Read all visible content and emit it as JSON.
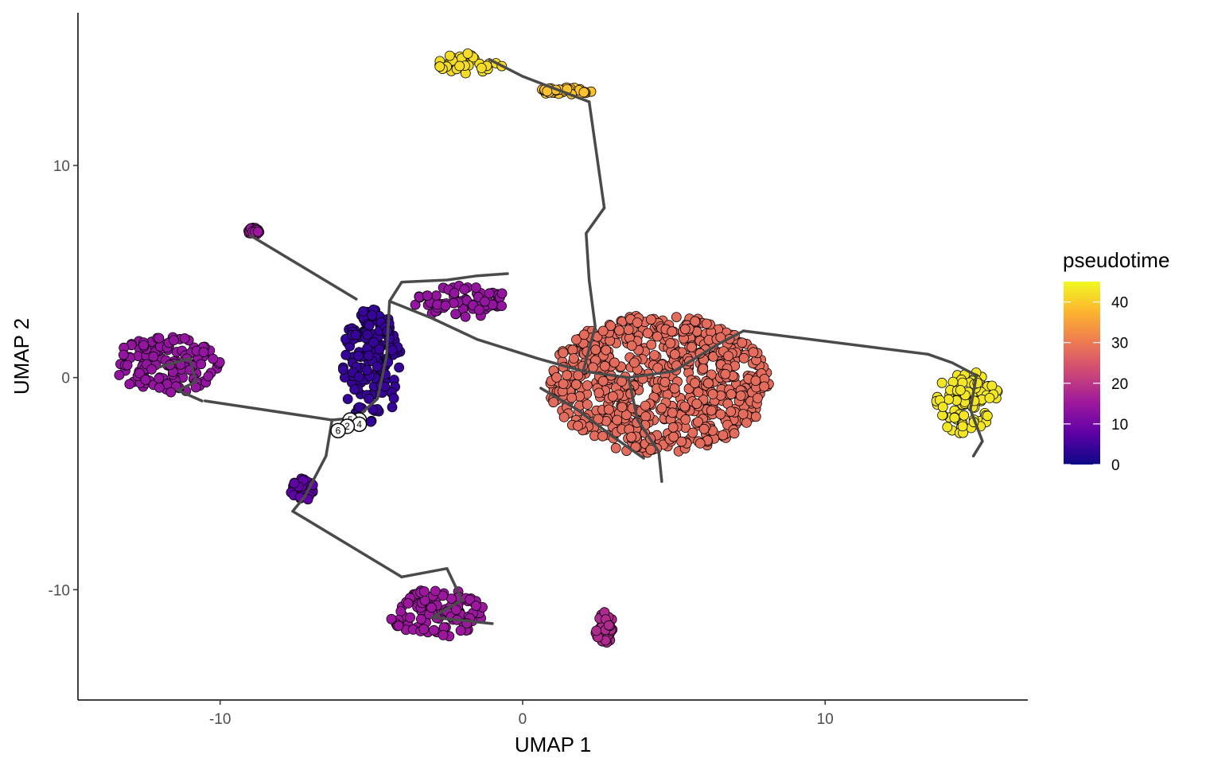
{
  "chart_data": {
    "type": "scatter",
    "title": "",
    "xlabel": "UMAP 1",
    "ylabel": "UMAP 2",
    "xlim": [
      -14.7,
      16.7
    ],
    "ylim": [
      -15.2,
      17.2
    ],
    "x_ticks": [
      {
        "value": -10,
        "label": "-10"
      },
      {
        "value": 0,
        "label": "0"
      },
      {
        "value": 10,
        "label": "10"
      }
    ],
    "y_ticks": [
      {
        "value": -10,
        "label": "-10"
      },
      {
        "value": 0,
        "label": "0"
      },
      {
        "value": 10,
        "label": "10"
      }
    ],
    "grid": false,
    "colorbar": {
      "title": "pseudotime",
      "range": [
        0,
        45
      ],
      "ticks": [
        {
          "value": 0,
          "label": "0"
        },
        {
          "value": 10,
          "label": "10"
        },
        {
          "value": 20,
          "label": "20"
        },
        {
          "value": 30,
          "label": "30"
        },
        {
          "value": 40,
          "label": "40"
        }
      ],
      "colormap": "plasma",
      "stops": [
        "#0d0887",
        "#5c01a6",
        "#9c179e",
        "#cc4778",
        "#ed7953",
        "#fdb42f",
        "#f0f921"
      ]
    },
    "clusters": [
      {
        "name": "upper-left-blob",
        "center": [
          -11.8,
          0.6
        ],
        "size": [
          3.6,
          2.7
        ],
        "pseudotime": 14
      },
      {
        "name": "main-stem",
        "center": [
          -5.0,
          0.5
        ],
        "size": [
          2.0,
          5.5
        ],
        "pseudotime": 4
      },
      {
        "name": "stem-tail",
        "center": [
          -7.3,
          -5.3
        ],
        "size": [
          0.8,
          1.1
        ],
        "pseudotime": 8
      },
      {
        "name": "bridge",
        "center": [
          -2.0,
          3.6
        ],
        "size": [
          3.2,
          1.5
        ],
        "pseudotime": 14
      },
      {
        "name": "small-outlier",
        "center": [
          -8.9,
          6.9
        ],
        "size": [
          0.4,
          0.35
        ],
        "pseudotime": 15
      },
      {
        "name": "bottom-blob",
        "center": [
          -2.8,
          -11.1
        ],
        "size": [
          3.2,
          2.3
        ],
        "pseudotime": 15
      },
      {
        "name": "large-right-region",
        "center": [
          4.5,
          -0.3
        ],
        "size": [
          7.3,
          6.6
        ],
        "pseudotime": 28
      },
      {
        "name": "top-blob",
        "center": [
          -1.7,
          14.8
        ],
        "size": [
          2.2,
          1.0
        ],
        "pseudotime": 42
      },
      {
        "name": "top-tail",
        "center": [
          1.4,
          13.5
        ],
        "size": [
          1.8,
          0.4
        ],
        "pseudotime": 39
      },
      {
        "name": "far-right-cluster",
        "center": [
          14.7,
          -1.2
        ],
        "size": [
          2.2,
          3.0
        ],
        "pseudotime": 43
      },
      {
        "name": "tiny-bottom-pair",
        "center": [
          2.7,
          -11.8
        ],
        "size": [
          0.6,
          1.5
        ],
        "pseudotime": 18
      }
    ],
    "trajectory_edges": [
      [
        [
          -9.0,
          6.7
        ],
        [
          -5.5,
          3.7
        ]
      ],
      [
        [
          -10.5,
          -1.1
        ],
        [
          -6.3,
          -2.0
        ]
      ],
      [
        [
          -7.6,
          -6.3
        ],
        [
          -4.0,
          -9.4
        ]
      ],
      [
        [
          -6.3,
          -2.0
        ],
        [
          -6.5,
          -3.7
        ],
        [
          -7.2,
          -5.6
        ],
        [
          -7.6,
          -6.3
        ]
      ],
      [
        [
          -6.3,
          -2.0
        ],
        [
          -5.5,
          -1.9
        ],
        [
          -4.8,
          -1.0
        ],
        [
          -4.5,
          1.0
        ],
        [
          -4.4,
          3.6
        ],
        [
          -4.0,
          4.5
        ],
        [
          -2.5,
          4.6
        ],
        [
          -1.5,
          4.8
        ],
        [
          -0.5,
          4.9
        ]
      ],
      [
        [
          -4.4,
          3.6
        ],
        [
          -3.0,
          2.8
        ],
        [
          -1.5,
          1.8
        ],
        [
          0.5,
          0.9
        ],
        [
          2.0,
          0.3
        ],
        [
          3.5,
          0.0
        ],
        [
          5.0,
          0.3
        ],
        [
          6.5,
          1.6
        ],
        [
          7.3,
          2.2
        ]
      ],
      [
        [
          7.3,
          2.2
        ],
        [
          13.4,
          1.1
        ]
      ],
      [
        [
          2.0,
          0.3
        ],
        [
          2.4,
          2.4
        ],
        [
          2.2,
          4.6
        ],
        [
          2.1,
          6.8
        ],
        [
          2.7,
          8.0
        ]
      ],
      [
        [
          2.7,
          8.0
        ],
        [
          2.2,
          13.0
        ]
      ],
      [
        [
          2.2,
          13.0
        ],
        [
          0.0,
          14.2
        ],
        [
          -1.1,
          15.0
        ]
      ],
      [
        [
          3.5,
          0.0
        ],
        [
          3.8,
          -2.0
        ],
        [
          4.5,
          -3.5
        ],
        [
          4.6,
          -4.9
        ]
      ],
      [
        [
          0.6,
          -0.5
        ],
        [
          1.8,
          -1.5
        ],
        [
          3.0,
          -2.8
        ],
        [
          4.0,
          -3.8
        ]
      ],
      [
        [
          13.4,
          1.1
        ],
        [
          14.2,
          0.7
        ],
        [
          15.0,
          0.1
        ],
        [
          14.8,
          -1.5
        ],
        [
          15.2,
          -3.0
        ],
        [
          14.9,
          -3.7
        ]
      ],
      [
        [
          -12.0,
          0.5
        ],
        [
          -11.0,
          0.9
        ],
        [
          -10.8,
          -0.2
        ],
        [
          -11.4,
          -0.6
        ],
        [
          -10.6,
          -1.1
        ]
      ],
      [
        [
          -4.0,
          -9.4
        ],
        [
          -2.5,
          -9.0
        ],
        [
          -2.0,
          -10.5
        ],
        [
          -3.0,
          -11.3
        ],
        [
          -1.0,
          -11.6
        ]
      ]
    ],
    "trajectory_nodes": [
      {
        "label": "1",
        "x": -5.4,
        "y": -2.0
      },
      {
        "label": "5",
        "x": -5.7,
        "y": -2.0
      },
      {
        "label": "4",
        "x": -5.4,
        "y": -2.2
      },
      {
        "label": "2",
        "x": -5.8,
        "y": -2.3
      },
      {
        "label": "6",
        "x": -6.1,
        "y": -2.5
      }
    ]
  }
}
